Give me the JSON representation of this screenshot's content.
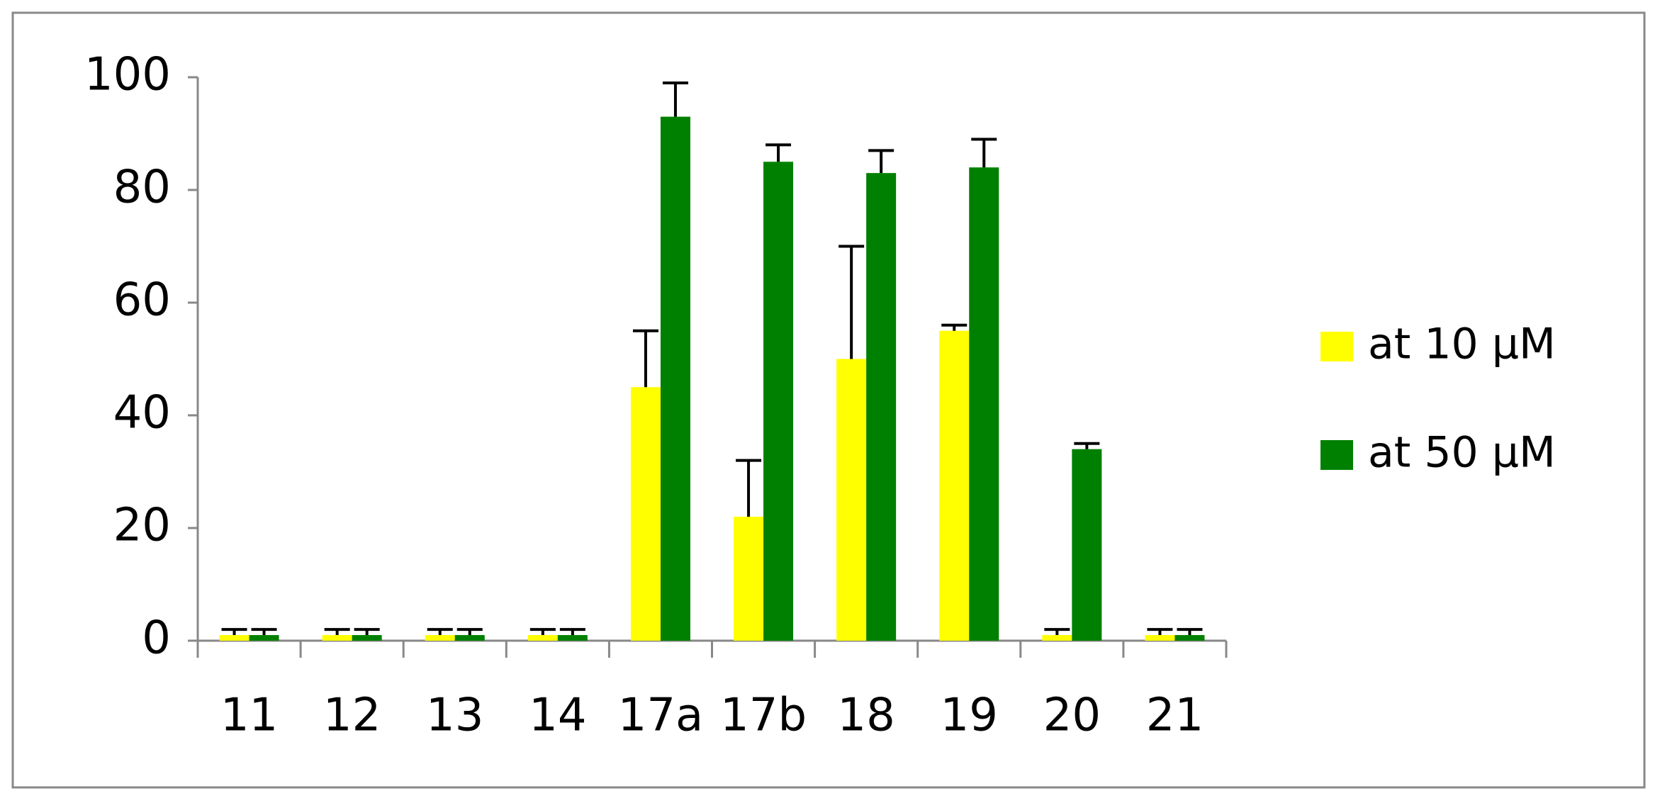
{
  "chart_data": {
    "type": "bar",
    "categories": [
      "11",
      "12",
      "13",
      "14",
      "17a",
      "17b",
      "18",
      "19",
      "20",
      "21"
    ],
    "series": [
      {
        "name": "at 10 µM",
        "color": "#ffff00",
        "values": [
          1,
          1,
          1,
          1,
          45,
          22,
          50,
          55,
          1,
          1
        ],
        "errors": [
          1,
          1,
          1,
          1,
          10,
          10,
          20,
          1,
          1,
          1
        ]
      },
      {
        "name": "at 50 µM",
        "color": "#008000",
        "values": [
          1,
          1,
          1,
          1,
          93,
          85,
          83,
          84,
          34,
          1
        ],
        "errors": [
          1,
          1,
          1,
          1,
          6,
          3,
          4,
          5,
          1,
          1
        ]
      }
    ],
    "ylim": [
      0,
      100
    ],
    "yticks": [
      0,
      20,
      40,
      60,
      80,
      100
    ],
    "grid": false,
    "legend": "right"
  }
}
